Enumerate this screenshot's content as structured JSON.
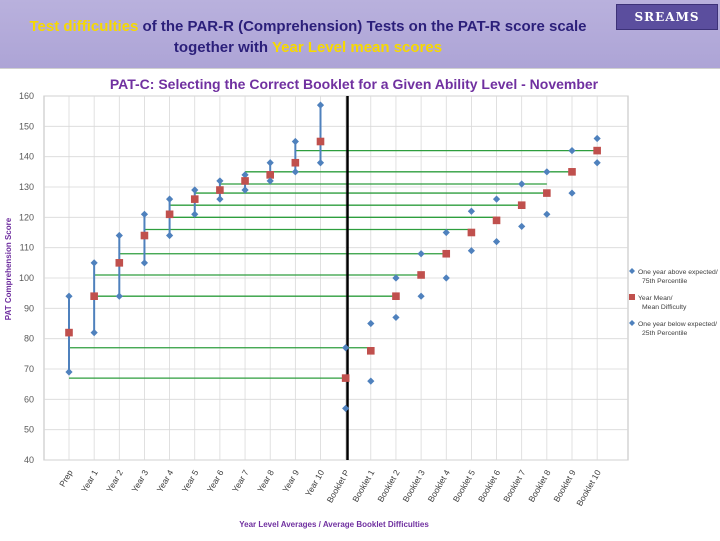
{
  "header": {
    "title_parts": [
      {
        "text": "Test difficulties",
        "highlight": true
      },
      {
        "text": " of the PAR-R (Comprehension) Tests on the PAT-R score scale together with ",
        "highlight": false
      },
      {
        "text": "Year Level mean scores",
        "highlight": true
      }
    ],
    "logo_text": "SREAMS"
  },
  "colors": {
    "header_bg": "#ada4d6",
    "title_text": "#2b1f7a",
    "title_highlight": "#f7d900",
    "blue_marker": "#4f81bd",
    "red_marker": "#c0504d",
    "green_line": "#2e9e3e",
    "chart_title": "#7030a0",
    "axis_label": "#7030a0"
  },
  "chart_data": {
    "type": "scatter",
    "title": "PAT-C: Selecting the Correct Booklet for a Given Ability Level - November",
    "xlabel": "Year Level Averages / Average Booklet Difficulties",
    "ylabel": "PAT Comprehension Score",
    "ylim": [
      40,
      160
    ],
    "yticks": [
      40,
      50,
      60,
      70,
      80,
      90,
      100,
      110,
      120,
      130,
      140,
      150,
      160
    ],
    "grid": true,
    "legend_position": "right",
    "categories": [
      "Prep",
      "Year 1",
      "Year 2",
      "Year 3",
      "Year 4",
      "Year 5",
      "Year 6",
      "Year 7",
      "Year 8",
      "Year 9",
      "Year 10",
      "Booklet P",
      "Booklet 1",
      "Booklet 2",
      "Booklet 3",
      "Booklet 4",
      "Booklet 5",
      "Booklet 6",
      "Booklet 7",
      "Booklet 8",
      "Booklet 9",
      "Booklet 10"
    ],
    "separator_after": "Year 10",
    "series": [
      {
        "name": "One year above expected/ 75th Percentile",
        "marker": "diamond",
        "color": "#4f81bd",
        "values": [
          94,
          105,
          114,
          121,
          126,
          129,
          132,
          134,
          138,
          145,
          157,
          77,
          85,
          100,
          108,
          115,
          122,
          126,
          131,
          135,
          142,
          146
        ]
      },
      {
        "name": "Year Mean/ Mean Difficulty",
        "marker": "square",
        "color": "#c0504d",
        "values": [
          82,
          94,
          105,
          114,
          121,
          126,
          129,
          132,
          134,
          138,
          145,
          67,
          76,
          94,
          101,
          108,
          115,
          119,
          124,
          128,
          135,
          142
        ]
      },
      {
        "name": "One year below expected/ 25th Percentile",
        "marker": "diamond",
        "color": "#4f81bd",
        "values": [
          69,
          82,
          94,
          105,
          114,
          121,
          126,
          129,
          132,
          135,
          138,
          57,
          66,
          87,
          94,
          100,
          109,
          112,
          117,
          121,
          128,
          138
        ]
      }
    ],
    "range_lines": [
      {
        "category": "Prep",
        "low": 69,
        "high": 94
      },
      {
        "category": "Year 1",
        "low": 82,
        "high": 105
      },
      {
        "category": "Year 2",
        "low": 94,
        "high": 114
      },
      {
        "category": "Year 3",
        "low": 105,
        "high": 121
      },
      {
        "category": "Year 4",
        "low": 114,
        "high": 126
      },
      {
        "category": "Year 5",
        "low": 121,
        "high": 129
      },
      {
        "category": "Year 6",
        "low": 126,
        "high": 132
      },
      {
        "category": "Year 7",
        "low": 129,
        "high": 134
      },
      {
        "category": "Year 8",
        "low": 132,
        "high": 138
      },
      {
        "category": "Year 9",
        "low": 135,
        "high": 145
      },
      {
        "category": "Year 10",
        "low": 138,
        "high": 157
      }
    ],
    "connectors": [
      {
        "from": "Prep",
        "to": "Booklet P",
        "y": 67
      },
      {
        "from": "Prep",
        "to": "Booklet 1",
        "y": 77
      },
      {
        "from": "Year 1",
        "to": "Booklet 2",
        "y": 94
      },
      {
        "from": "Year 1",
        "to": "Booklet 3",
        "y": 101
      },
      {
        "from": "Year 2",
        "to": "Booklet 4",
        "y": 108
      },
      {
        "from": "Year 3",
        "to": "Booklet 5",
        "y": 116
      },
      {
        "from": "Year 4",
        "to": "Booklet 6",
        "y": 120
      },
      {
        "from": "Year 4",
        "to": "Booklet 7",
        "y": 124
      },
      {
        "from": "Year 5",
        "to": "Booklet 8",
        "y": 128
      },
      {
        "from": "Year 6",
        "to": "Booklet 8",
        "y": 131
      },
      {
        "from": "Year 7",
        "to": "Booklet 9",
        "y": 135
      },
      {
        "from": "Year 9",
        "to": "Booklet 10",
        "y": 142
      }
    ]
  }
}
